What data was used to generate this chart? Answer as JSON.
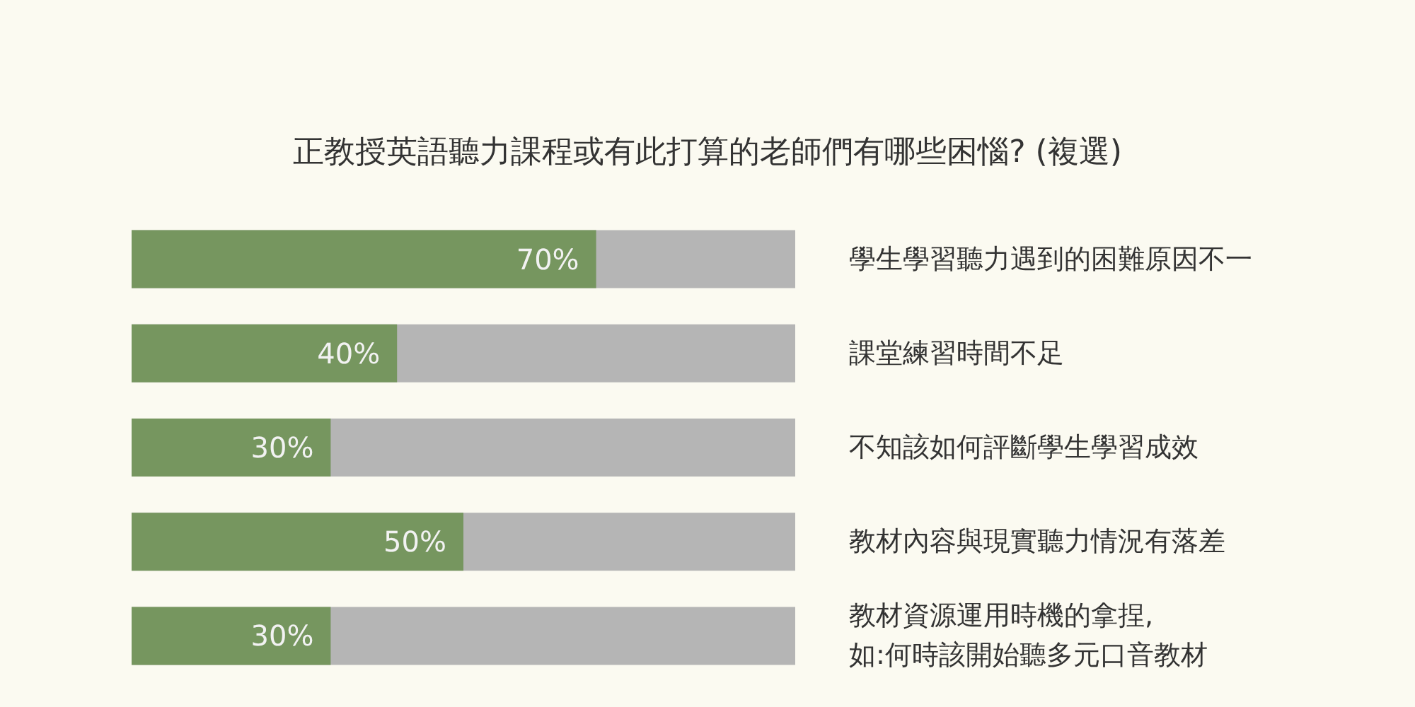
{
  "chart_data": {
    "type": "bar",
    "orientation": "horizontal",
    "title": "正教授英語聽力課程或有此打算的老師們有哪些困惱? (複選)",
    "categories": [
      "學生學習聽力遇到的困難原因不一",
      "課堂練習時間不足",
      "不知該如何評斷學生學習成效",
      "教材內容與現實聽力情況有落差",
      "教材資源運用時機的拿捏,\n如:何時該開始聽多元口音教材"
    ],
    "series": [
      {
        "color": "#76965f",
        "values": [
          70,
          40,
          30,
          50,
          30
        ],
        "value_labels": [
          "70%",
          "40%",
          "30%",
          "50%",
          "30%"
        ]
      }
    ],
    "grid": false,
    "tick_labels": "y"
  }
}
